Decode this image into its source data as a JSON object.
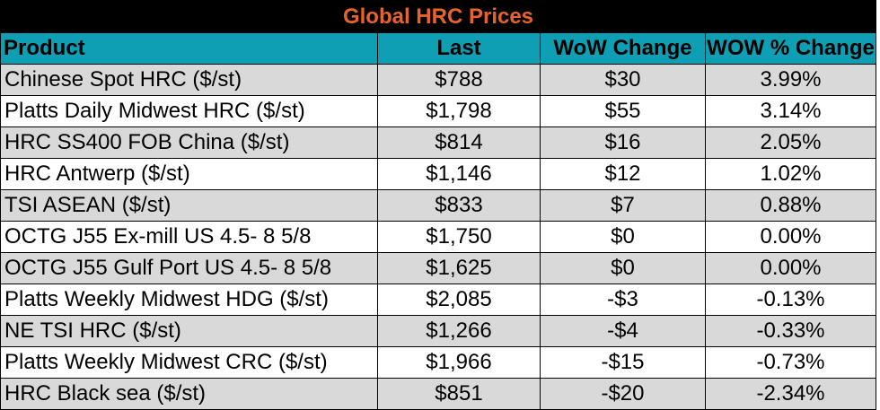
{
  "table": {
    "title": "Global HRC Prices",
    "headers": [
      "Product",
      "Last",
      "WoW Change",
      "WOW % Change"
    ],
    "rows": [
      [
        "Chinese Spot HRC ($/st)",
        "$788",
        "$30",
        "3.99%"
      ],
      [
        "Platts Daily Midwest HRC ($/st)",
        "$1,798",
        "$55",
        "3.14%"
      ],
      [
        "HRC SS400 FOB China ($/st)",
        "$814",
        "$16",
        "2.05%"
      ],
      [
        "HRC Antwerp ($/st)",
        "$1,146",
        "$12",
        "1.02%"
      ],
      [
        "TSI ASEAN ($/st)",
        "$833",
        "$7",
        "0.88%"
      ],
      [
        "OCTG J55 Ex-mill US 4.5- 8 5/8",
        "$1,750",
        "$0",
        "0.00%"
      ],
      [
        "OCTG J55 Gulf Port US 4.5- 8 5/8",
        "$1,625",
        "$0",
        "0.00%"
      ],
      [
        "Platts Weekly Midwest HDG ($/st)",
        "$2,085",
        "-$3",
        "-0.13%"
      ],
      [
        "NE TSI HRC ($/st)",
        "$1,266",
        "-$4",
        "-0.33%"
      ],
      [
        "Platts Weekly Midwest CRC ($/st)",
        "$1,966",
        "-$15",
        "-0.73%"
      ],
      [
        "HRC Black sea ($/st)",
        "$851",
        "-$20",
        "-2.34%"
      ]
    ]
  },
  "colors": {
    "title_bg": "#000000",
    "title_text": "#e8632b",
    "header_bg": "#0e9fb4",
    "row_shade": "#d9d9d9",
    "row_plain": "#ffffff"
  }
}
